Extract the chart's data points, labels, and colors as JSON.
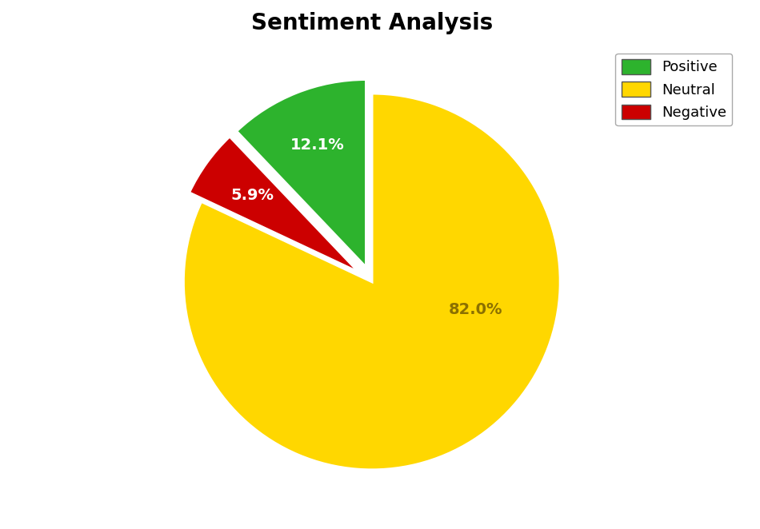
{
  "title": "Sentiment Analysis",
  "labels": [
    "Positive",
    "Neutral",
    "Negative"
  ],
  "sizes": [
    12.1,
    82.0,
    5.9
  ],
  "colors": [
    "#2db32d",
    "#FFD700",
    "#CC0000"
  ],
  "explode": [
    0.08,
    0.0,
    0.08
  ],
  "text_colors": [
    "white",
    "#8B8000",
    "white"
  ],
  "startangle": 72,
  "title_fontsize": 20,
  "legend_fontsize": 13,
  "autopct_fontsize": 14,
  "background_color": "#ffffff",
  "pctdistance_positive": 0.6,
  "pctdistance_neutral": 0.82,
  "pctdistance_negative": 0.6
}
